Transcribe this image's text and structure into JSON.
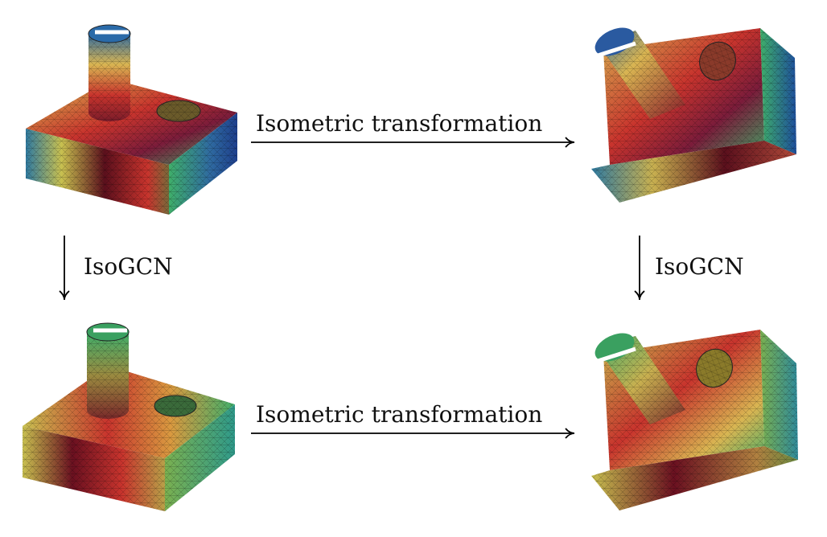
{
  "labels": {
    "top_arrow": "Isometric transformation",
    "bottom_arrow": "Isometric transformation",
    "left_arrow": "IsoGCN",
    "right_arrow": "IsoGCN"
  },
  "colors": {
    "dark_red": "#5a0f1c",
    "red": "#c8342d",
    "orange": "#e07a36",
    "yellow": "#d9c552",
    "green": "#3fae6a",
    "teal": "#2f9a9a",
    "blue": "#1e4f9c",
    "arrow": "#000000"
  }
}
